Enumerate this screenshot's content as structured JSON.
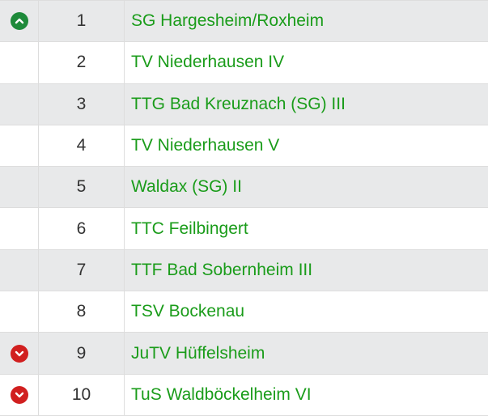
{
  "colors": {
    "team_link": "#1a9c1a",
    "promotion": "#1e8a3a",
    "relegation": "#d11f1f",
    "row_stripe": "#e8e9ea"
  },
  "standings": [
    {
      "rank": "1",
      "team": "SG Hargesheim/Roxheim",
      "indicator": "chevron-up-icon"
    },
    {
      "rank": "2",
      "team": "TV Niederhausen IV",
      "indicator": ""
    },
    {
      "rank": "3",
      "team": "TTG Bad Kreuznach (SG) III",
      "indicator": ""
    },
    {
      "rank": "4",
      "team": "TV Niederhausen V",
      "indicator": ""
    },
    {
      "rank": "5",
      "team": "Waldax (SG) II",
      "indicator": ""
    },
    {
      "rank": "6",
      "team": "TTC Feilbingert",
      "indicator": ""
    },
    {
      "rank": "7",
      "team": "TTF Bad Sobernheim III",
      "indicator": ""
    },
    {
      "rank": "8",
      "team": "TSV Bockenau",
      "indicator": ""
    },
    {
      "rank": "9",
      "team": "JuTV Hüffelsheim",
      "indicator": "chevron-down-icon"
    },
    {
      "rank": "10",
      "team": "TuS Waldböckelheim VI",
      "indicator": "chevron-down-icon"
    }
  ]
}
